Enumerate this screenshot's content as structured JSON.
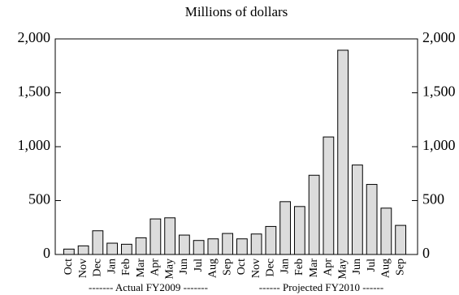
{
  "chart_data": {
    "type": "bar",
    "subtitle": "Millions of dollars",
    "categories": [
      "Oct",
      "Nov",
      "Dec",
      "Jan",
      "Feb",
      "Mar",
      "Apr",
      "May",
      "Jun",
      "Jul",
      "Aug",
      "Sep",
      "Oct",
      "Nov",
      "Dec",
      "Jan",
      "Feb",
      "Mar",
      "Apr",
      "May",
      "Jun",
      "Jul",
      "Aug",
      "Sep"
    ],
    "values": [
      50,
      80,
      220,
      105,
      95,
      155,
      330,
      340,
      180,
      130,
      145,
      195,
      145,
      190,
      260,
      490,
      445,
      735,
      1090,
      1895,
      830,
      650,
      430,
      270
    ],
    "color": "#dcdcdc",
    "group_labels": [
      "------- Actual FY2009 -------",
      "------ Projected FY2010 ------"
    ],
    "ylim": [
      0,
      2000
    ],
    "yticks": [
      0,
      500,
      {
        "value": 1000,
        "label": "1,000"
      },
      {
        "value": 1500,
        "label": "1,500"
      },
      {
        "value": 2000,
        "label": "2,000"
      }
    ],
    "y2lim": [
      0,
      2000
    ],
    "y2ticks": [
      0,
      500,
      {
        "value": 1000,
        "label": "1,000"
      },
      {
        "value": 1500,
        "label": "1,500"
      },
      {
        "value": 2000,
        "label": "2,000"
      }
    ],
    "grid": false
  }
}
